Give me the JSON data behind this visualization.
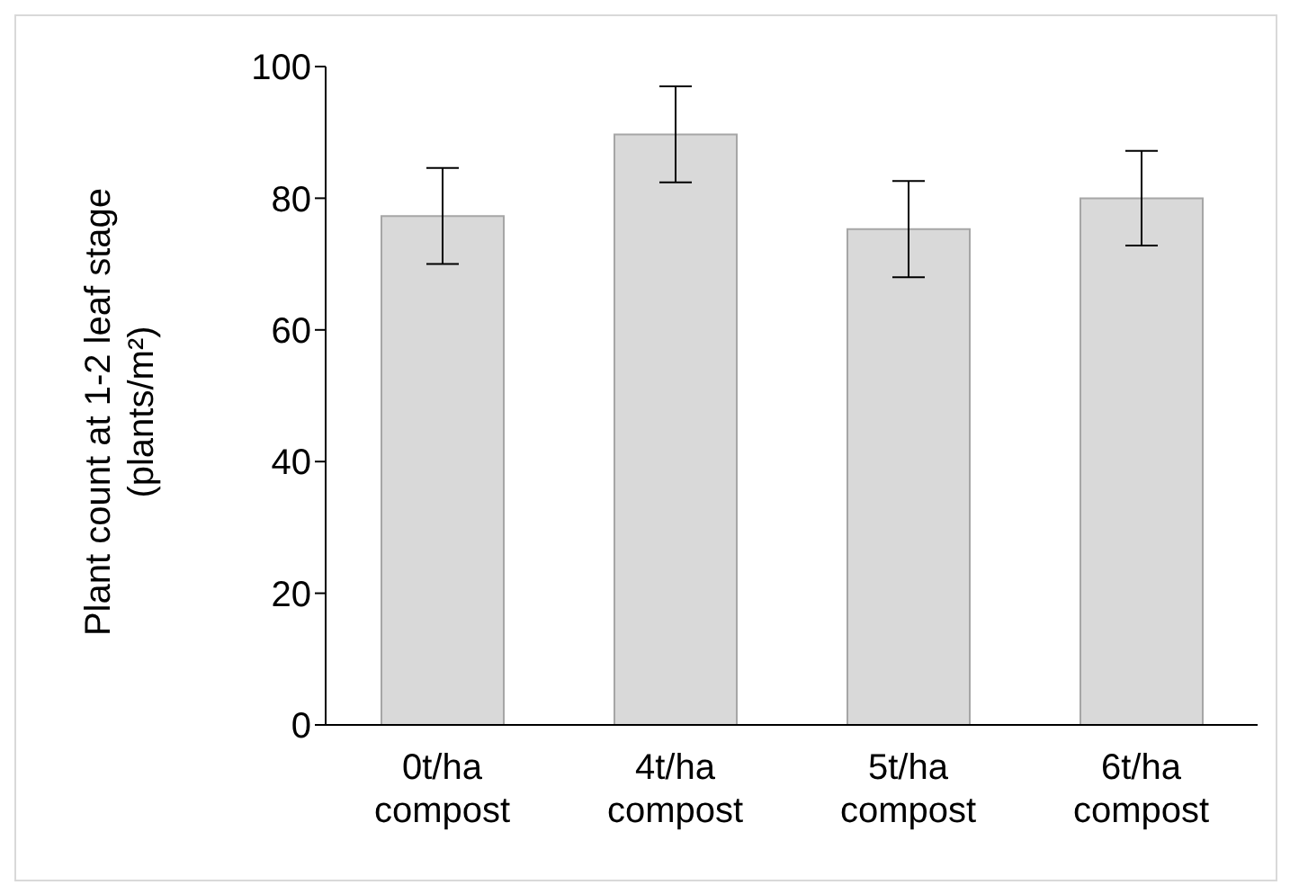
{
  "chart_data": {
    "type": "bar",
    "ylabel": "Plant count at 1-2 leaf stage (plants/m²)",
    "categories": [
      "0t/ha compost",
      "4t/ha compost",
      "5t/ha compost",
      "6t/ha compost"
    ],
    "values": [
      77.3,
      89.7,
      75.3,
      80
    ],
    "errors": [
      7.3,
      7.3,
      7.3,
      7.2
    ],
    "color": "#d9d9d9",
    "ylim": [
      0,
      100
    ],
    "yticks": [
      0,
      20,
      40,
      60,
      80,
      100
    ],
    "grid": false,
    "legend": false
  }
}
